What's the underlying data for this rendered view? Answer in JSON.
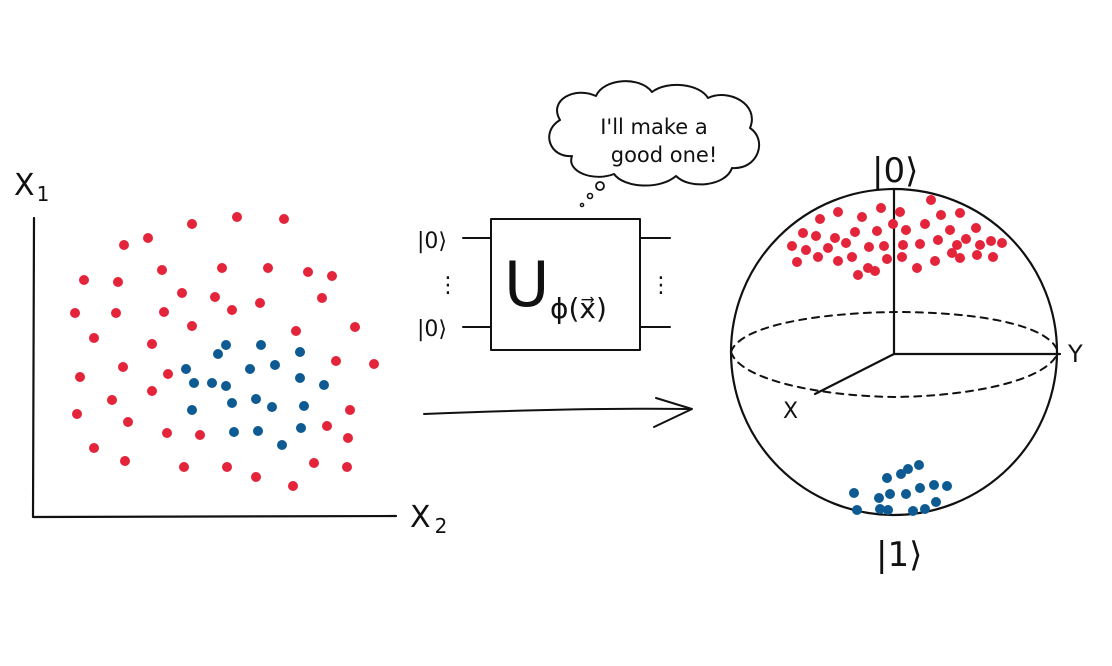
{
  "scatter": {
    "axis_x_label": "X2",
    "axis_x_label_main": "X",
    "axis_x_label_sub": "2",
    "axis_y_label_main": "X",
    "axis_y_label_sub": "1",
    "red_points": [
      [
        192,
        224
      ],
      [
        237,
        217
      ],
      [
        284,
        219
      ],
      [
        124,
        245
      ],
      [
        148,
        238
      ],
      [
        84,
        280
      ],
      [
        118,
        282
      ],
      [
        162,
        270
      ],
      [
        222,
        268
      ],
      [
        268,
        268
      ],
      [
        308,
        272
      ],
      [
        332,
        276
      ],
      [
        75,
        313
      ],
      [
        116,
        313
      ],
      [
        164,
        312
      ],
      [
        182,
        293
      ],
      [
        215,
        297
      ],
      [
        232,
        310
      ],
      [
        260,
        303
      ],
      [
        322,
        298
      ],
      [
        94,
        338
      ],
      [
        152,
        344
      ],
      [
        192,
        326
      ],
      [
        296,
        331
      ],
      [
        355,
        327
      ],
      [
        80,
        377
      ],
      [
        123,
        367
      ],
      [
        152,
        391
      ],
      [
        168,
        374
      ],
      [
        336,
        361
      ],
      [
        374,
        364
      ],
      [
        77,
        414
      ],
      [
        112,
        400
      ],
      [
        128,
        422
      ],
      [
        167,
        433
      ],
      [
        200,
        435
      ],
      [
        327,
        426
      ],
      [
        350,
        410
      ],
      [
        94,
        448
      ],
      [
        125,
        461
      ],
      [
        184,
        467
      ],
      [
        227,
        467
      ],
      [
        256,
        477
      ],
      [
        293,
        486
      ],
      [
        314,
        463
      ],
      [
        347,
        467
      ],
      [
        348,
        438
      ]
    ],
    "blue_points": [
      [
        218,
        354
      ],
      [
        226,
        345
      ],
      [
        261,
        345
      ],
      [
        300,
        352
      ],
      [
        186,
        369
      ],
      [
        194,
        383
      ],
      [
        212,
        383
      ],
      [
        226,
        386
      ],
      [
        250,
        369
      ],
      [
        275,
        365
      ],
      [
        300,
        378
      ],
      [
        324,
        385
      ],
      [
        192,
        410
      ],
      [
        232,
        403
      ],
      [
        256,
        399
      ],
      [
        272,
        407
      ],
      [
        304,
        406
      ],
      [
        234,
        432
      ],
      [
        258,
        431
      ],
      [
        282,
        445
      ],
      [
        301,
        428
      ]
    ],
    "colors": {
      "red": "#e3243a",
      "blue": "#0e5a92",
      "ink": "#111111"
    }
  },
  "circuit": {
    "input_top": "|0⟩",
    "input_bottom": "|0⟩",
    "ellipsis_in": "⋮",
    "ellipsis_out": "⋮",
    "gate_main": "U",
    "gate_sub": "ϕ(x⃗)",
    "thought_line1": "I'll make a",
    "thought_line2": "good one!"
  },
  "bloch": {
    "top_label": "|0⟩",
    "bottom_label": "|1⟩",
    "axis_x": "X",
    "axis_y": "Y",
    "red_points": [
      [
        820,
        219
      ],
      [
        838,
        212
      ],
      [
        862,
        217
      ],
      [
        881,
        208
      ],
      [
        900,
        212
      ],
      [
        931,
        200
      ],
      [
        941,
        215
      ],
      [
        960,
        213
      ],
      [
        976,
        228
      ],
      [
        803,
        233
      ],
      [
        816,
        236
      ],
      [
        835,
        238
      ],
      [
        855,
        232
      ],
      [
        877,
        231
      ],
      [
        893,
        224
      ],
      [
        906,
        230
      ],
      [
        925,
        224
      ],
      [
        950,
        230
      ],
      [
        966,
        239
      ],
      [
        991,
        241
      ],
      [
        1002,
        243
      ],
      [
        792,
        246
      ],
      [
        806,
        250
      ],
      [
        828,
        248
      ],
      [
        846,
        243
      ],
      [
        869,
        247
      ],
      [
        884,
        246
      ],
      [
        903,
        245
      ],
      [
        920,
        244
      ],
      [
        938,
        240
      ],
      [
        957,
        245
      ],
      [
        980,
        245
      ],
      [
        797,
        262
      ],
      [
        818,
        257
      ],
      [
        838,
        261
      ],
      [
        852,
        257
      ],
      [
        868,
        268
      ],
      [
        887,
        259
      ],
      [
        902,
        257
      ],
      [
        917,
        268
      ],
      [
        935,
        261
      ],
      [
        952,
        253
      ],
      [
        960,
        258
      ],
      [
        977,
        255
      ],
      [
        993,
        257
      ],
      [
        858,
        275
      ],
      [
        875,
        271
      ]
    ],
    "blue_points": [
      [
        908,
        469
      ],
      [
        919,
        465
      ],
      [
        887,
        478
      ],
      [
        901,
        474
      ],
      [
        920,
        488
      ],
      [
        934,
        485
      ],
      [
        947,
        486
      ],
      [
        854,
        493
      ],
      [
        879,
        498
      ],
      [
        890,
        494
      ],
      [
        906,
        494
      ],
      [
        857,
        510
      ],
      [
        880,
        509
      ],
      [
        888,
        510
      ],
      [
        913,
        511
      ],
      [
        925,
        509
      ],
      [
        936,
        502
      ]
    ]
  }
}
